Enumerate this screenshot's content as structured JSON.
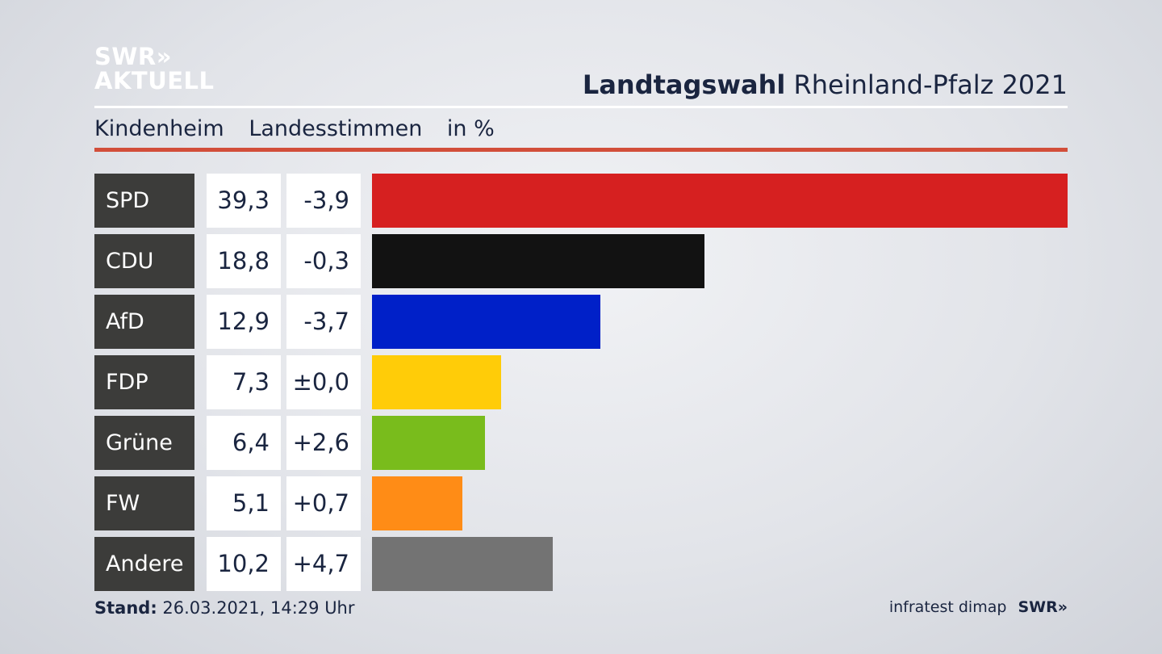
{
  "logo": {
    "line1": "SWR»",
    "line2": "AKTUELL"
  },
  "header": {
    "title_bold": "Landtagswahl",
    "title_rest": "Rheinland-Pfalz 2021"
  },
  "subtitle": {
    "place": "Kindenheim",
    "type": "Landesstimmen",
    "unit": "in %"
  },
  "footer": {
    "stand_label": "Stand:",
    "stand_value": "26.03.2021, 14:29 Uhr",
    "source": "infratest dimap",
    "brand": "SWR»"
  },
  "colors": {
    "accent_rule": "#d24e3a",
    "label_bg": "#3c3c3a"
  },
  "chart_data": {
    "type": "bar",
    "orientation": "horizontal",
    "categories": [
      "SPD",
      "CDU",
      "AfD",
      "FDP",
      "Grüne",
      "FW",
      "Andere"
    ],
    "values": [
      39.3,
      18.8,
      12.9,
      7.3,
      6.4,
      5.1,
      10.2
    ],
    "value_labels": [
      "39,3",
      "18,8",
      "12,9",
      "7,3",
      "6,4",
      "5,1",
      "10,2"
    ],
    "diff_labels": [
      "-3,9",
      "-0,3",
      "-3,7",
      "±0,0",
      "+2,6",
      "+0,7",
      "+4,7"
    ],
    "diffs": [
      -3.9,
      -0.3,
      -3.7,
      0.0,
      2.6,
      0.7,
      4.7
    ],
    "colors": [
      "#d62020",
      "#121212",
      "#0020c8",
      "#ffcc08",
      "#79bc1c",
      "#ff8c16",
      "#737373"
    ],
    "xlim": [
      0,
      39.3
    ],
    "grid": false
  }
}
